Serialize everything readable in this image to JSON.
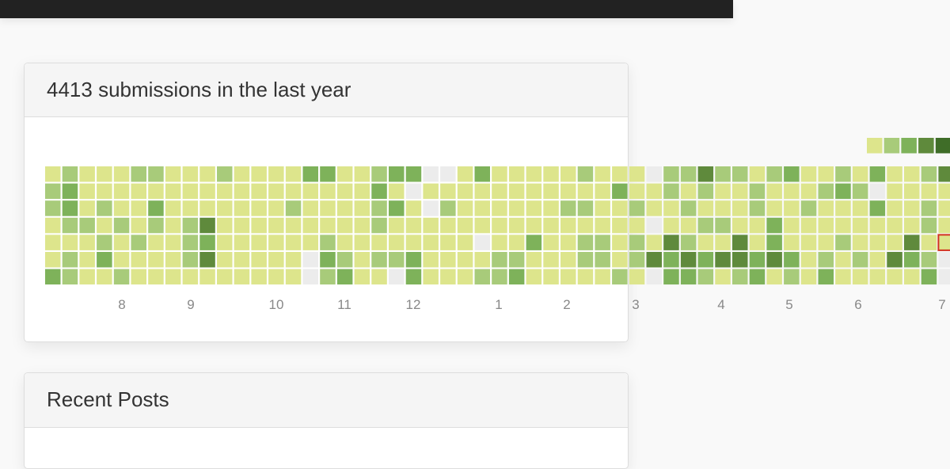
{
  "activity_panel": {
    "title": "4413 submissions in the last year",
    "months": [
      "8",
      "9",
      "10",
      "11",
      "12",
      "1",
      "2",
      "3",
      "4",
      "5",
      "6",
      "7"
    ],
    "level_colors": [
      "#ececec",
      "#dde58c",
      "#a8cb7a",
      "#7eb25a",
      "#5f8a3c",
      "#3f6d28"
    ],
    "levels": [
      [
        1,
        2,
        1,
        1,
        1,
        2,
        2,
        1,
        1,
        1,
        2,
        1,
        1,
        1,
        1,
        3,
        3,
        1,
        1,
        2,
        3,
        3,
        0,
        0,
        1,
        3,
        1,
        1,
        1,
        1,
        1,
        2,
        1,
        1,
        1,
        0,
        2,
        2,
        4,
        2,
        2,
        1,
        2,
        3,
        1,
        1,
        2,
        1,
        3,
        1,
        1,
        2,
        4
      ],
      [
        2,
        3,
        1,
        1,
        1,
        1,
        1,
        1,
        1,
        1,
        1,
        1,
        1,
        1,
        1,
        1,
        1,
        1,
        1,
        3,
        1,
        0,
        1,
        1,
        1,
        1,
        1,
        1,
        1,
        1,
        1,
        1,
        1,
        3,
        1,
        1,
        2,
        1,
        2,
        1,
        1,
        2,
        1,
        1,
        1,
        2,
        3,
        2,
        0,
        1,
        1,
        1,
        1
      ],
      [
        2,
        3,
        1,
        2,
        1,
        1,
        3,
        1,
        1,
        1,
        1,
        1,
        1,
        1,
        2,
        1,
        1,
        1,
        1,
        2,
        3,
        1,
        0,
        2,
        1,
        1,
        1,
        1,
        1,
        1,
        2,
        2,
        1,
        1,
        2,
        1,
        1,
        2,
        1,
        1,
        1,
        2,
        1,
        1,
        2,
        1,
        1,
        1,
        3,
        1,
        1,
        2,
        1
      ],
      [
        1,
        2,
        2,
        1,
        2,
        1,
        2,
        1,
        2,
        4,
        1,
        1,
        1,
        1,
        1,
        1,
        1,
        1,
        1,
        2,
        1,
        1,
        1,
        1,
        1,
        1,
        1,
        1,
        1,
        1,
        1,
        1,
        1,
        1,
        1,
        0,
        1,
        1,
        2,
        2,
        1,
        1,
        3,
        1,
        1,
        1,
        1,
        1,
        1,
        1,
        1,
        2,
        1
      ],
      [
        1,
        1,
        1,
        2,
        1,
        2,
        1,
        1,
        2,
        3,
        1,
        1,
        1,
        1,
        1,
        1,
        2,
        1,
        1,
        1,
        1,
        1,
        1,
        1,
        1,
        0,
        1,
        1,
        3,
        1,
        1,
        2,
        2,
        1,
        2,
        1,
        4,
        2,
        1,
        1,
        4,
        1,
        3,
        1,
        1,
        1,
        2,
        1,
        1,
        1,
        4,
        1,
        1
      ],
      [
        1,
        2,
        1,
        3,
        1,
        1,
        1,
        1,
        2,
        4,
        1,
        1,
        1,
        1,
        1,
        0,
        3,
        2,
        1,
        2,
        2,
        3,
        1,
        1,
        1,
        1,
        2,
        2,
        1,
        1,
        1,
        2,
        2,
        1,
        2,
        4,
        3,
        4,
        3,
        4,
        4,
        3,
        4,
        3,
        1,
        2,
        1,
        2,
        1,
        4,
        3,
        2,
        0
      ],
      [
        3,
        2,
        1,
        1,
        2,
        1,
        1,
        1,
        1,
        1,
        1,
        1,
        1,
        1,
        1,
        0,
        2,
        3,
        1,
        1,
        0,
        3,
        1,
        1,
        1,
        2,
        2,
        3,
        1,
        1,
        1,
        1,
        1,
        2,
        1,
        0,
        3,
        3,
        2,
        1,
        2,
        3,
        1,
        2,
        1,
        3,
        1,
        1,
        1,
        1,
        1,
        3,
        0
      ]
    ]
  },
  "posts_panel": {
    "title": "Recent Posts"
  }
}
